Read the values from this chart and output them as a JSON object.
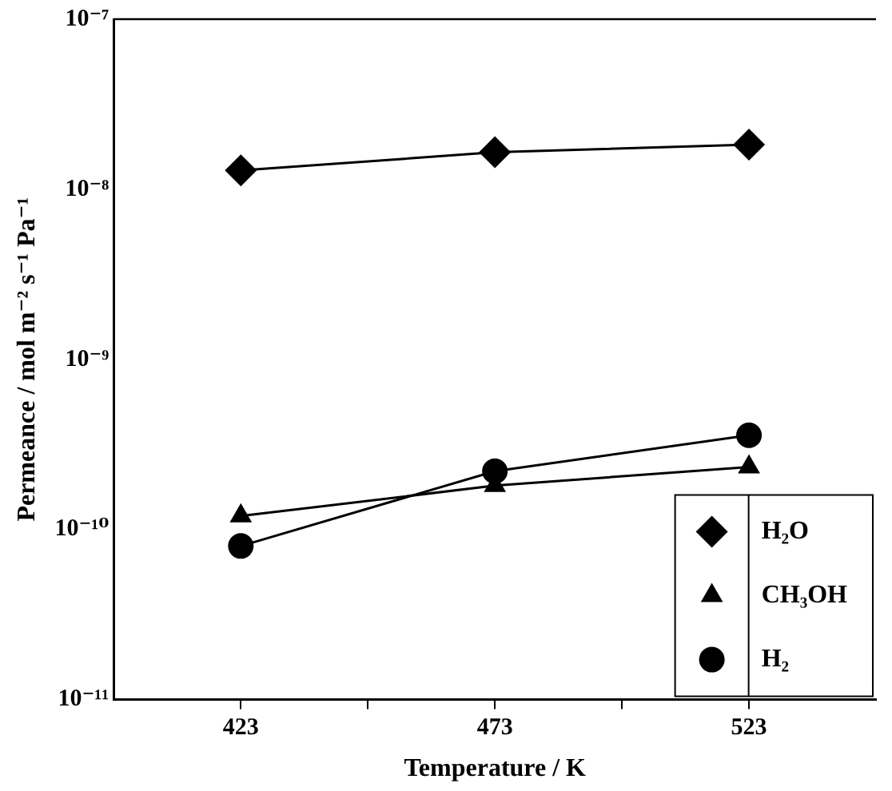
{
  "chart_data": {
    "type": "line",
    "xlabel": "Temperature / K",
    "ylabel": "Permeance / mol m⁻² s⁻¹ Pa⁻¹",
    "x": [
      423,
      473,
      523
    ],
    "series": [
      {
        "name": "H₂O",
        "color": "#000000",
        "marker": "diamond",
        "values": [
          1.29e-08,
          1.65e-08,
          1.83e-08
        ]
      },
      {
        "name": "CH₃OH",
        "color": "#000000",
        "marker": "triangle",
        "values": [
          1.2e-10,
          1.81e-10,
          2.33e-10
        ]
      },
      {
        "name": "H₂",
        "color": "#000000",
        "marker": "circle",
        "values": [
          8e-11,
          2.2e-10,
          3.58e-10
        ]
      }
    ],
    "log": "y",
    "xlim": [
      398,
      548
    ],
    "xticks": [
      423,
      {
        "value": 448,
        "label": null
      },
      473,
      {
        "value": 498,
        "label": null
      },
      523
    ],
    "ylim": [
      1e-11,
      1e-07
    ],
    "yticks": [
      {
        "value": 1e-11,
        "label": "10⁻¹¹"
      },
      {
        "value": 1e-10,
        "label": "10⁻¹⁰"
      },
      {
        "value": 1e-09,
        "label": "10⁻⁹"
      },
      {
        "value": 1e-08,
        "label": "10⁻⁸"
      },
      {
        "value": 1e-07,
        "label": "10⁻⁷"
      }
    ],
    "grid": false,
    "legend": "bottom right",
    "line_style": "solid"
  }
}
